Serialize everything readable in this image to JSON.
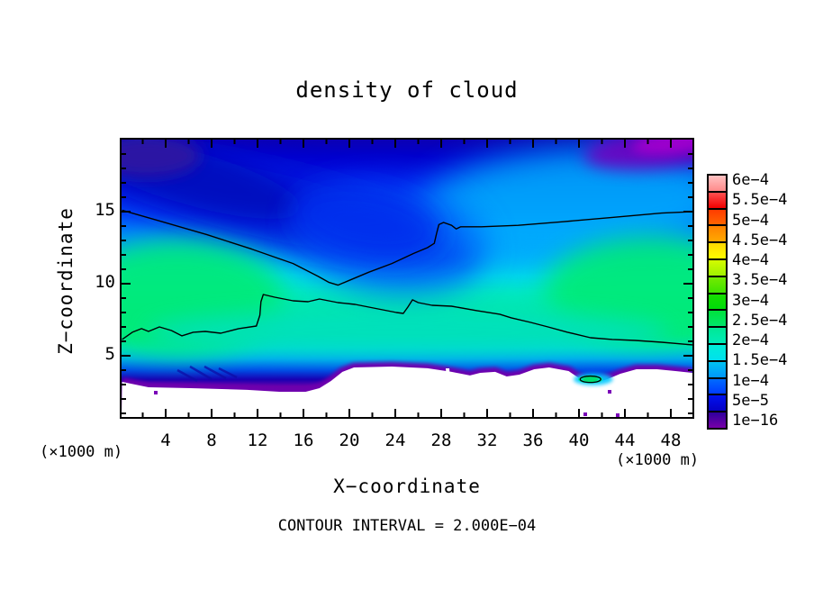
{
  "title": "density of cloud",
  "axes": {
    "x_label": "X−coordinate",
    "y_label": "Z−coordinate",
    "x_unit_left": "(×1000 m)",
    "x_unit_right": "(×1000 m)",
    "x_major_ticks": [
      4,
      8,
      12,
      16,
      20,
      24,
      28,
      32,
      36,
      40,
      44,
      48
    ],
    "x_minor_ticks": [
      2,
      6,
      10,
      14,
      18,
      22,
      26,
      30,
      34,
      38,
      42,
      46
    ],
    "y_major_ticks": [
      5,
      10,
      15
    ],
    "y_minor_ticks": [
      1,
      2,
      3,
      4,
      6,
      7,
      8,
      9,
      11,
      12,
      13,
      14,
      16,
      17,
      18,
      19
    ]
  },
  "footer": {
    "contour_note": "CONTOUR INTERVAL = 2.000E−04"
  },
  "colorbar": {
    "labels": [
      "6e−4",
      "5.5e−4",
      "5e−4",
      "4.5e−4",
      "4e−4",
      "3.5e−4",
      "3e−4",
      "2.5e−4",
      "2e−4",
      "1.5e−4",
      "1e−4",
      "5e−5",
      "1e−16"
    ],
    "cells": [
      [
        "#ffc2c2",
        "#ff8a8a"
      ],
      [
        "#ff5050",
        "#f00000"
      ],
      [
        "#ff3c00",
        "#ff6400"
      ],
      [
        "#ff8200",
        "#ffa800"
      ],
      [
        "#ffd800",
        "#fffb00"
      ],
      [
        "#d4fb00",
        "#a0f200"
      ],
      [
        "#74ea00",
        "#3fe300"
      ],
      [
        "#17de00",
        "#00dc0a"
      ],
      [
        "#00e13c",
        "#00e56b"
      ],
      [
        "#00e895",
        "#00ebb8"
      ],
      [
        "#00edd6",
        "#00e0ee"
      ],
      [
        "#00c2f2",
        "#0096fa"
      ],
      [
        "#006bff",
        "#003cff"
      ],
      [
        "#0013f0",
        "#0500c4"
      ],
      [
        "#2e009d",
        "#7700a8"
      ]
    ]
  },
  "chart_data": {
    "type": "heatmap",
    "subtype": "filled_contour_cross_section",
    "title": "density of cloud",
    "xlabel": "X-coordinate (×1000 m)",
    "ylabel": "Z-coordinate (×1000 m)",
    "xlim": [
      0.2,
      49.9
    ],
    "ylim": [
      0.75,
      20
    ],
    "contour_interval": 0.0002,
    "levels": [
      1e-16,
      5e-05,
      0.0001,
      0.00015,
      0.0002,
      0.00025,
      0.0003,
      0.00035,
      0.0004,
      0.00045,
      0.0005,
      0.00055,
      0.0006
    ],
    "contour_lines": [
      {
        "level": 0.0002,
        "name": "upper-branch",
        "points": [
          [
            0.2,
            15.1
          ],
          [
            3.7,
            14.3
          ],
          [
            7.6,
            13.4
          ],
          [
            11.5,
            12.4
          ],
          [
            15.1,
            11.4
          ],
          [
            17.3,
            10.5
          ],
          [
            18.2,
            10.1
          ],
          [
            19.0,
            9.9
          ],
          [
            19.9,
            10.2
          ],
          [
            21.7,
            10.8
          ],
          [
            23.7,
            11.4
          ],
          [
            25.6,
            12.1
          ],
          [
            26.8,
            12.5
          ],
          [
            27.4,
            12.8
          ],
          [
            27.6,
            13.5
          ],
          [
            27.8,
            14.1
          ],
          [
            28.2,
            14.25
          ],
          [
            28.9,
            14.05
          ],
          [
            29.3,
            13.8
          ],
          [
            29.7,
            13.95
          ],
          [
            31.5,
            13.95
          ],
          [
            34.7,
            14.05
          ],
          [
            38.6,
            14.3
          ],
          [
            42.9,
            14.6
          ],
          [
            47.2,
            14.9
          ],
          [
            49.9,
            15.0
          ]
        ]
      },
      {
        "level": 0.0002,
        "name": "lower-branch",
        "points": [
          [
            0.2,
            6.13
          ],
          [
            1.1,
            6.63
          ],
          [
            1.9,
            6.88
          ],
          [
            2.5,
            6.69
          ],
          [
            3.45,
            7.0
          ],
          [
            4.5,
            6.75
          ],
          [
            5.4,
            6.38
          ],
          [
            6.4,
            6.63
          ],
          [
            7.45,
            6.69
          ],
          [
            8.8,
            6.56
          ],
          [
            10.35,
            6.88
          ],
          [
            11.9,
            7.06
          ],
          [
            12.2,
            7.81
          ],
          [
            12.3,
            8.75
          ],
          [
            12.5,
            9.25
          ],
          [
            13.5,
            9.06
          ],
          [
            15.1,
            8.81
          ],
          [
            16.4,
            8.75
          ],
          [
            17.4,
            8.94
          ],
          [
            19.0,
            8.69
          ],
          [
            20.5,
            8.56
          ],
          [
            22.5,
            8.25
          ],
          [
            24.1,
            8.0
          ],
          [
            24.7,
            7.94
          ],
          [
            25.1,
            8.38
          ],
          [
            25.5,
            8.88
          ],
          [
            26.0,
            8.69
          ],
          [
            27.2,
            8.5
          ],
          [
            28.9,
            8.44
          ],
          [
            31.1,
            8.13
          ],
          [
            33.1,
            7.88
          ],
          [
            34.1,
            7.63
          ],
          [
            35.8,
            7.31
          ],
          [
            37.3,
            7.0
          ],
          [
            39.0,
            6.63
          ],
          [
            41.0,
            6.25
          ],
          [
            42.9,
            6.13
          ],
          [
            44.9,
            6.06
          ],
          [
            47.2,
            5.94
          ],
          [
            49.9,
            5.75
          ]
        ]
      },
      {
        "level": 0.0002,
        "name": "closed-cell",
        "ellipse": {
          "cx": 41.0,
          "cz": 3.37,
          "rx": 0.9,
          "rz": 0.22
        }
      }
    ],
    "white_region_top_profile": [
      [
        0.2,
        3.19
      ],
      [
        2.5,
        2.81
      ],
      [
        6.2,
        2.75
      ],
      [
        11.1,
        2.63
      ],
      [
        13.9,
        2.5
      ],
      [
        16.2,
        2.5
      ],
      [
        17.4,
        2.75
      ],
      [
        18.4,
        3.25
      ],
      [
        19.4,
        3.88
      ],
      [
        20.4,
        4.19
      ],
      [
        23.7,
        4.25
      ],
      [
        26.8,
        4.13
      ],
      [
        28.9,
        3.88
      ],
      [
        30.5,
        3.63
      ],
      [
        31.4,
        3.81
      ],
      [
        32.7,
        3.88
      ],
      [
        33.7,
        3.56
      ],
      [
        34.8,
        3.69
      ],
      [
        36.1,
        4.06
      ],
      [
        37.4,
        4.19
      ],
      [
        39.1,
        3.94
      ],
      [
        39.9,
        3.5
      ],
      [
        40.7,
        3.13
      ],
      [
        41.5,
        3.13
      ],
      [
        42.5,
        3.38
      ],
      [
        43.6,
        3.75
      ],
      [
        45.0,
        4.06
      ],
      [
        46.8,
        4.06
      ],
      [
        48.4,
        3.94
      ],
      [
        49.9,
        3.81
      ]
    ],
    "field_summary": [
      "dark blue band (about 5e-5 to 1e-4) sloping from top-left down toward plot centre",
      "dark purple patch in top-left corner and magenta-purple patch in top-right corner (below 5e-5)",
      "green maxima around 2.5e-4 centred near x=5,z=10 and x=44,z=10",
      "cyan valley around 1.5e-4 between x=18-28, z=9-13",
      "thin purple layer (below 5e-5) hugging the white cloud-free ground region under z≈4",
      "small closed cell above 2e-4 near x=41, z=3.4 with green core and cyan halo",
      "tiny purple specks inside the white region near x=3,z=2.5; x=40,z=1.6; x=42,z=1.3"
    ]
  }
}
